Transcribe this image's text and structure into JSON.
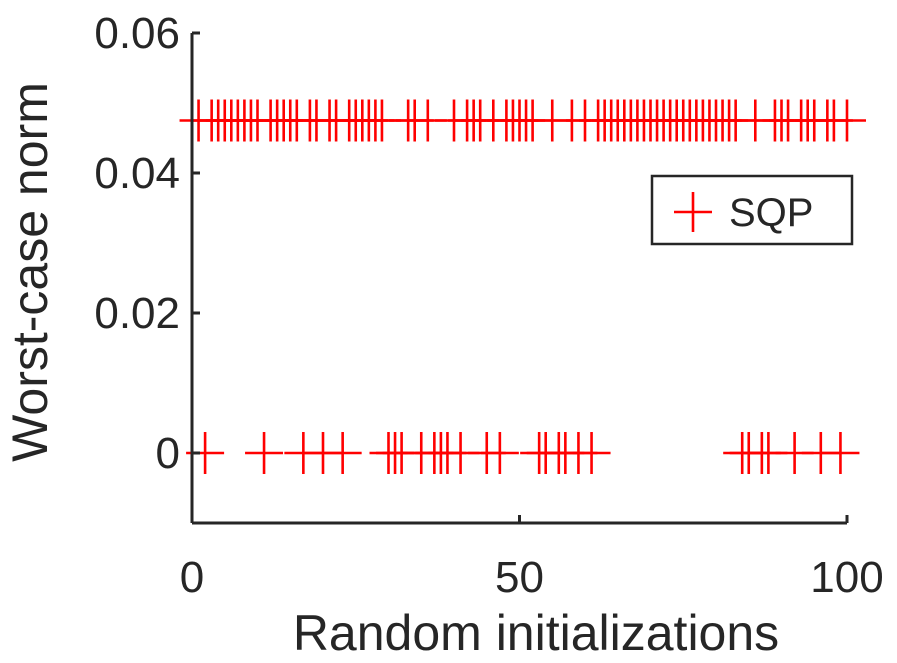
{
  "chart_data": {
    "type": "scatter",
    "title": "",
    "xlabel": "Random initializations",
    "ylabel": "Worst-case norm",
    "xlim": [
      0,
      100
    ],
    "ylim": [
      -0.01,
      0.06
    ],
    "xticks": [
      0,
      50,
      100
    ],
    "xtick_labels": [
      "0",
      "50",
      "100"
    ],
    "yticks": [
      0,
      0.02,
      0.04,
      0.06
    ],
    "ytick_labels": [
      "0",
      "0.02",
      "0.04",
      "0.06"
    ],
    "grid": false,
    "legend_position": "top-right",
    "series": [
      {
        "name": "SQP",
        "color": "#ff0000",
        "marker": "plus",
        "points": [
          {
            "x": 1,
            "y": 0.0475
          },
          {
            "x": 2,
            "y": 0
          },
          {
            "x": 3,
            "y": 0.0475
          },
          {
            "x": 4,
            "y": 0.0475
          },
          {
            "x": 5,
            "y": 0.0475
          },
          {
            "x": 6,
            "y": 0.0475
          },
          {
            "x": 7,
            "y": 0.0475
          },
          {
            "x": 8,
            "y": 0.0475
          },
          {
            "x": 9,
            "y": 0.0475
          },
          {
            "x": 10,
            "y": 0.0475
          },
          {
            "x": 11,
            "y": 0
          },
          {
            "x": 12,
            "y": 0.0475
          },
          {
            "x": 13,
            "y": 0.0475
          },
          {
            "x": 14,
            "y": 0.0475
          },
          {
            "x": 15,
            "y": 0.0475
          },
          {
            "x": 16,
            "y": 0.0475
          },
          {
            "x": 17,
            "y": 0
          },
          {
            "x": 18,
            "y": 0.0475
          },
          {
            "x": 19,
            "y": 0.0475
          },
          {
            "x": 20,
            "y": 0
          },
          {
            "x": 21,
            "y": 0.0475
          },
          {
            "x": 22,
            "y": 0.0475
          },
          {
            "x": 23,
            "y": 0
          },
          {
            "x": 24,
            "y": 0.0475
          },
          {
            "x": 25,
            "y": 0.0475
          },
          {
            "x": 26,
            "y": 0.0475
          },
          {
            "x": 27,
            "y": 0.0475
          },
          {
            "x": 28,
            "y": 0.0475
          },
          {
            "x": 29,
            "y": 0.0475
          },
          {
            "x": 30,
            "y": 0
          },
          {
            "x": 31,
            "y": 0
          },
          {
            "x": 32,
            "y": 0
          },
          {
            "x": 33,
            "y": 0.0475
          },
          {
            "x": 34,
            "y": 0.0475
          },
          {
            "x": 35,
            "y": 0
          },
          {
            "x": 36,
            "y": 0.0475
          },
          {
            "x": 37,
            "y": 0
          },
          {
            "x": 38,
            "y": 0
          },
          {
            "x": 39,
            "y": 0
          },
          {
            "x": 40,
            "y": 0.0475
          },
          {
            "x": 41,
            "y": 0
          },
          {
            "x": 42,
            "y": 0.0475
          },
          {
            "x": 43,
            "y": 0.0475
          },
          {
            "x": 44,
            "y": 0.0475
          },
          {
            "x": 45,
            "y": 0
          },
          {
            "x": 46,
            "y": 0.0475
          },
          {
            "x": 47,
            "y": 0
          },
          {
            "x": 48,
            "y": 0.0475
          },
          {
            "x": 49,
            "y": 0.0475
          },
          {
            "x": 50,
            "y": 0.0475
          },
          {
            "x": 51,
            "y": 0.0475
          },
          {
            "x": 52,
            "y": 0.0475
          },
          {
            "x": 53,
            "y": 0
          },
          {
            "x": 54,
            "y": 0
          },
          {
            "x": 55,
            "y": 0.0475
          },
          {
            "x": 56,
            "y": 0
          },
          {
            "x": 57,
            "y": 0
          },
          {
            "x": 58,
            "y": 0.0475
          },
          {
            "x": 59,
            "y": 0
          },
          {
            "x": 60,
            "y": 0.0475
          },
          {
            "x": 61,
            "y": 0
          },
          {
            "x": 62,
            "y": 0.0475
          },
          {
            "x": 63,
            "y": 0.0475
          },
          {
            "x": 64,
            "y": 0.0475
          },
          {
            "x": 65,
            "y": 0.0475
          },
          {
            "x": 66,
            "y": 0.0475
          },
          {
            "x": 67,
            "y": 0.0475
          },
          {
            "x": 68,
            "y": 0.0475
          },
          {
            "x": 69,
            "y": 0.0475
          },
          {
            "x": 70,
            "y": 0.0475
          },
          {
            "x": 71,
            "y": 0.0475
          },
          {
            "x": 72,
            "y": 0.0475
          },
          {
            "x": 73,
            "y": 0.0475
          },
          {
            "x": 74,
            "y": 0.0475
          },
          {
            "x": 75,
            "y": 0.0475
          },
          {
            "x": 76,
            "y": 0.0475
          },
          {
            "x": 77,
            "y": 0.0475
          },
          {
            "x": 78,
            "y": 0.0475
          },
          {
            "x": 79,
            "y": 0.0475
          },
          {
            "x": 80,
            "y": 0.0475
          },
          {
            "x": 81,
            "y": 0.0475
          },
          {
            "x": 82,
            "y": 0.0475
          },
          {
            "x": 83,
            "y": 0.0475
          },
          {
            "x": 84,
            "y": 0
          },
          {
            "x": 85,
            "y": 0
          },
          {
            "x": 86,
            "y": 0.0475
          },
          {
            "x": 87,
            "y": 0
          },
          {
            "x": 88,
            "y": 0
          },
          {
            "x": 89,
            "y": 0.0475
          },
          {
            "x": 90,
            "y": 0.0475
          },
          {
            "x": 91,
            "y": 0.0475
          },
          {
            "x": 92,
            "y": 0
          },
          {
            "x": 93,
            "y": 0.0475
          },
          {
            "x": 94,
            "y": 0.0475
          },
          {
            "x": 95,
            "y": 0.0475
          },
          {
            "x": 96,
            "y": 0
          },
          {
            "x": 97,
            "y": 0.0475
          },
          {
            "x": 98,
            "y": 0.0475
          },
          {
            "x": 99,
            "y": 0
          },
          {
            "x": 100,
            "y": 0.0475
          }
        ]
      }
    ]
  }
}
